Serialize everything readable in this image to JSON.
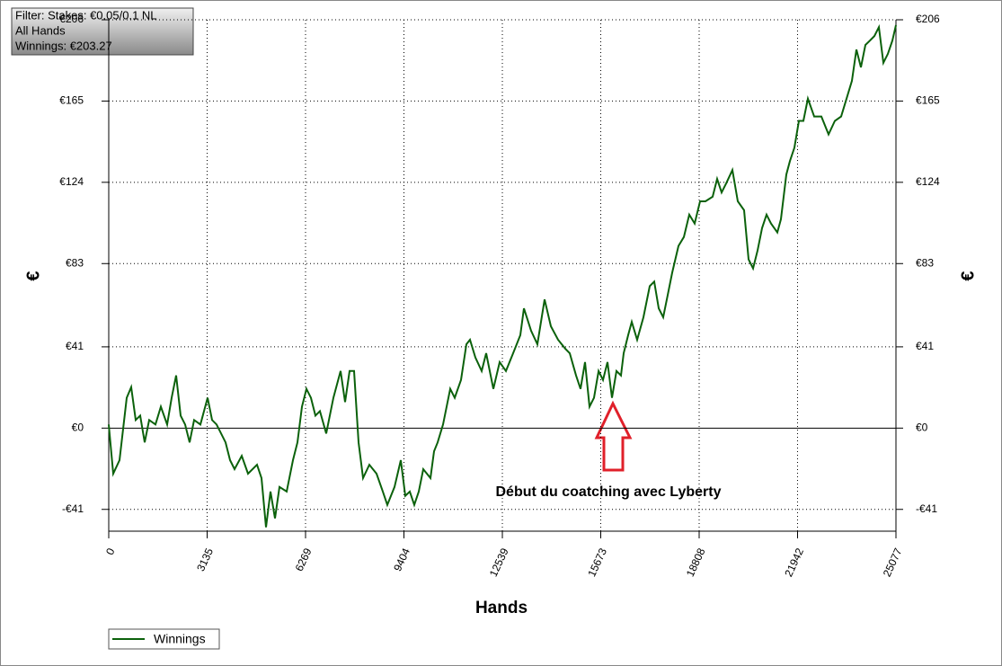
{
  "filter": [
    "Filter: Stakes: €0.05/0.1 NL",
    "All Hands",
    "Winnings: €203.27"
  ],
  "chart_data": {
    "type": "line",
    "x_label": "Hands",
    "y_label": "€",
    "annotation": "Début du coatching avec Lyberty",
    "xlim": [
      0,
      25077
    ],
    "xticks": [
      0,
      3135,
      6269,
      9404,
      12539,
      15673,
      18808,
      21942,
      25077
    ],
    "ylim": [
      -52,
      206
    ],
    "yticks": [
      {
        "value": -41,
        "label": "-€41"
      },
      {
        "value": 0,
        "label": "€0"
      },
      {
        "value": 41,
        "label": "€41"
      },
      {
        "value": 83,
        "label": "€83"
      },
      {
        "value": 124,
        "label": "€124"
      },
      {
        "value": 165,
        "label": "€165"
      },
      {
        "value": 206,
        "label": "€206"
      }
    ],
    "grid": true,
    "legend": "bottom-left",
    "x": [
      0,
      143,
      344,
      573,
      716,
      859,
      1002,
      1145,
      1288,
      1489,
      1661,
      1861,
      2004,
      2147,
      2290,
      2434,
      2577,
      2720,
      2920,
      3149,
      3292,
      3436,
      3722,
      3865,
      4008,
      4237,
      4437,
      4724,
      4867,
      5010,
      5153,
      5296,
      5439,
      5668,
      5869,
      6012,
      6155,
      6298,
      6441,
      6584,
      6727,
      6928,
      7157,
      7386,
      7529,
      7672,
      7815,
      7958,
      8101,
      8302,
      8531,
      8731,
      8874,
      9103,
      9304,
      9447,
      9590,
      9733,
      9876,
      10020,
      10249,
      10363,
      10478,
      10650,
      10879,
      11022,
      11222,
      11394,
      11509,
      11680,
      11881,
      12024,
      12253,
      12453,
      12654,
      12883,
      13112,
      13226,
      13455,
      13656,
      13885,
      14085,
      14314,
      14543,
      14686,
      14887,
      15030,
      15173,
      15316,
      15459,
      15603,
      15746,
      15889,
      16032,
      16175,
      16318,
      16404,
      16547,
      16662,
      16833,
      17034,
      17234,
      17377,
      17520,
      17663,
      17806,
      17950,
      18150,
      18322,
      18494,
      18665,
      18837,
      19009,
      19238,
      19381,
      19524,
      19667,
      19867,
      20039,
      20239,
      20383,
      20526,
      20669,
      20812,
      20955,
      21098,
      21299,
      21413,
      21585,
      21699,
      21842,
      21985,
      22128,
      22271,
      22472,
      22701,
      22930,
      23130,
      23331,
      23503,
      23674,
      23817,
      23961,
      24104,
      24247,
      24390,
      24533,
      24676,
      24819,
      24962,
      25077
    ],
    "series": [
      {
        "name": "Winnings",
        "color": "#0b610b",
        "values": [
          1.8,
          -23,
          -16.2,
          15.3,
          20.7,
          4.1,
          6.3,
          -7.2,
          4.1,
          1.8,
          10.8,
          1.8,
          15.3,
          26.6,
          6.3,
          1.8,
          -7.2,
          4.1,
          1.8,
          15.3,
          4.1,
          1.8,
          -7.2,
          -16.2,
          -20.7,
          -14,
          -23,
          -18.5,
          -25.2,
          -50,
          -32,
          -45.5,
          -29.7,
          -32,
          -16.2,
          -7.2,
          10.8,
          19.8,
          15.3,
          6.3,
          8.6,
          -2.7,
          15.3,
          28.8,
          13.1,
          28.8,
          28.8,
          -7.2,
          -25.2,
          -18.5,
          -23,
          -32,
          -38.7,
          -29.7,
          -16.2,
          -34.2,
          -32,
          -38.7,
          -32,
          -20.7,
          -25.2,
          -11.7,
          -7.2,
          1.8,
          19.8,
          15.3,
          24.3,
          42.3,
          44.6,
          35.6,
          28.8,
          37.8,
          19.8,
          33.3,
          28.8,
          37.8,
          46.9,
          60.4,
          49.1,
          42.3,
          64.9,
          51.4,
          44.6,
          40.1,
          37.8,
          26.6,
          19.8,
          33.3,
          10.8,
          15.3,
          28.8,
          24.3,
          33.3,
          15.3,
          28.8,
          26.6,
          37.8,
          46.9,
          53.6,
          44.6,
          55.9,
          71.6,
          73.9,
          60.4,
          55.9,
          67.1,
          78.4,
          91.9,
          96.4,
          107.7,
          103.2,
          114.4,
          114.4,
          116.7,
          125.7,
          118.9,
          123.4,
          130.2,
          114.4,
          109.9,
          85.1,
          80.6,
          89.6,
          100.9,
          107.7,
          103.2,
          98.7,
          105.4,
          127.9,
          134.7,
          141.5,
          155,
          155,
          166.2,
          157.2,
          157.2,
          148.2,
          155,
          157.2,
          166.2,
          175.2,
          191,
          182,
          193.3,
          195.5,
          197.8,
          202.3,
          184.3,
          188.8,
          195.5,
          203.27
        ]
      }
    ]
  }
}
